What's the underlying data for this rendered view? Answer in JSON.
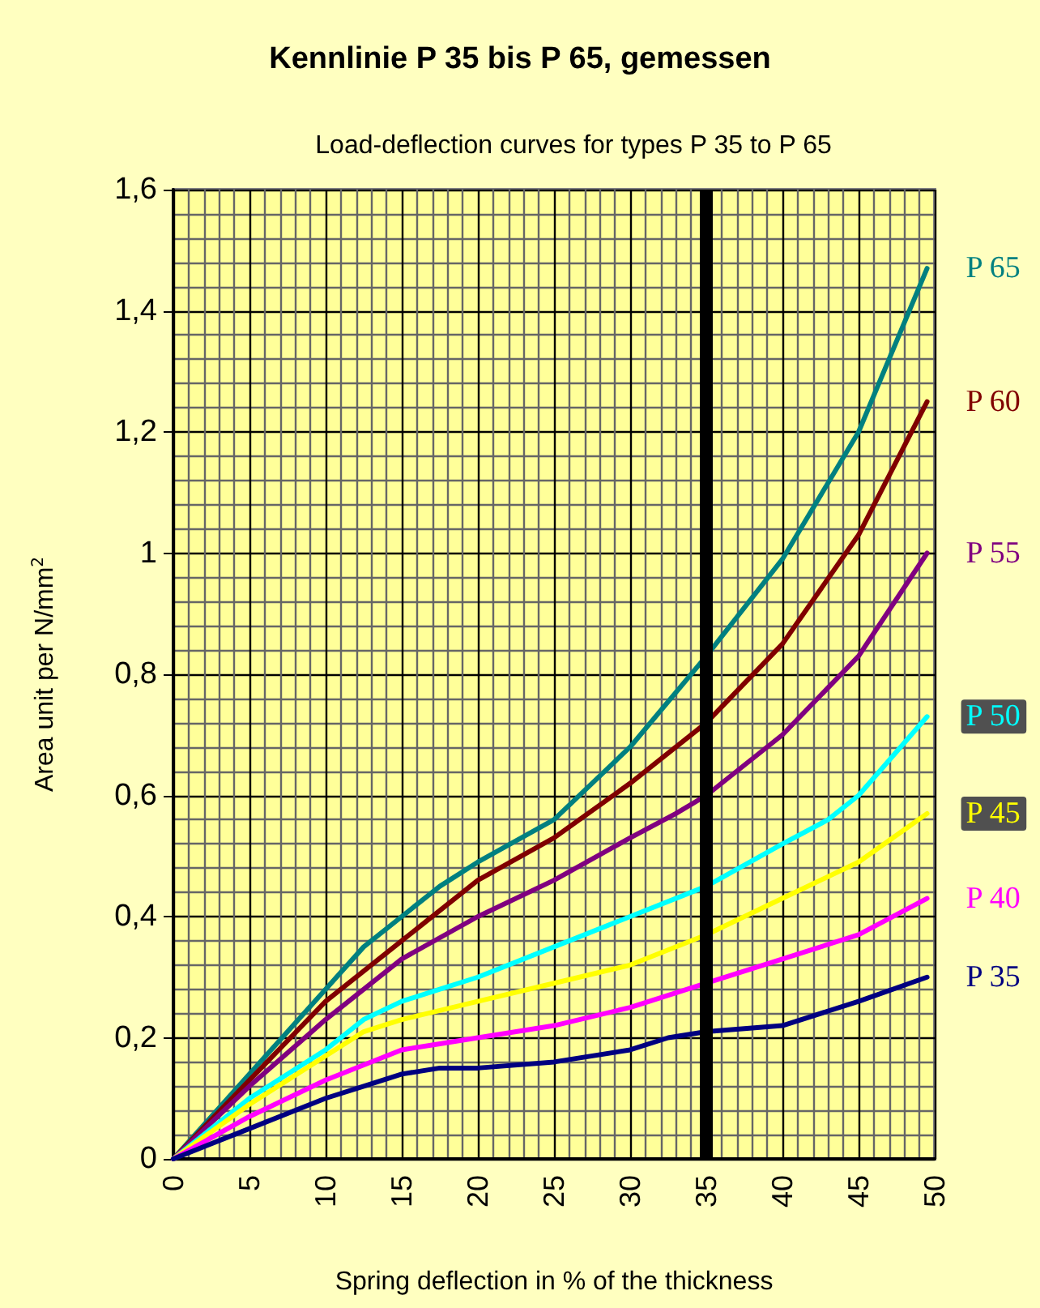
{
  "chart_data": {
    "type": "line",
    "title": "Kennlinie P 35 bis P 65, gemessen",
    "subtitle": "Load-deflection curves for types P 35 to P 65",
    "xlabel": "Spring deflection in % of the thickness",
    "ylabel": "Area unit per N/mm$^{2}$",
    "xlim": [
      0,
      50
    ],
    "xticks": [
      0,
      5,
      10,
      15,
      20,
      25,
      30,
      35,
      40,
      45,
      50
    ],
    "ylim": [
      0,
      1.6
    ],
    "yticks": [
      0,
      {
        "value": 0.2,
        "label": "0,2"
      },
      {
        "value": 0.4,
        "label": "0,4"
      },
      {
        "value": 0.6,
        "label": "0,6"
      },
      {
        "value": 0.8,
        "label": "0,8"
      },
      1,
      {
        "value": 1.2,
        "label": "1,2"
      },
      {
        "value": 1.4,
        "label": "1,4"
      },
      {
        "value": 1.6,
        "label": "1,6"
      }
    ],
    "grid": true,
    "legend": false,
    "marker": "none",
    "line_style": "solid",
    "ref_lines": [
      {
        "axis": "x",
        "value": 35,
        "color": "#000000"
      }
    ],
    "series": [
      {
        "name": "P 65",
        "color": "#008080",
        "x": [
          0,
          5,
          10,
          12.5,
          15,
          17.5,
          20,
          25,
          30,
          35,
          40,
          45,
          49.5
        ],
        "values": [
          0,
          0.14,
          0.28,
          0.35,
          0.4,
          0.45,
          0.49,
          0.56,
          0.68,
          0.83,
          0.99,
          1.2,
          1.47
        ]
      },
      {
        "name": "P 60",
        "color": "#800000",
        "x": [
          0,
          5,
          10,
          15,
          20,
          25,
          30,
          35,
          40,
          45,
          49.5
        ],
        "values": [
          0,
          0.13,
          0.26,
          0.36,
          0.46,
          0.53,
          0.62,
          0.72,
          0.85,
          1.03,
          1.25
        ]
      },
      {
        "name": "P 55",
        "color": "#800080",
        "x": [
          0,
          5,
          10,
          15,
          20,
          25,
          30,
          33,
          35,
          40,
          45,
          49.5
        ],
        "values": [
          0,
          0.12,
          0.23,
          0.33,
          0.4,
          0.46,
          0.53,
          0.57,
          0.6,
          0.7,
          0.83,
          1.0
        ]
      },
      {
        "name": "P 50",
        "color": "#00ffff",
        "x": [
          0,
          5,
          10,
          12.5,
          15,
          17.5,
          20,
          25,
          30,
          35,
          40,
          43,
          45,
          49.5
        ],
        "values": [
          0,
          0.1,
          0.18,
          0.23,
          0.26,
          0.28,
          0.3,
          0.35,
          0.4,
          0.45,
          0.52,
          0.56,
          0.6,
          0.73
        ]
      },
      {
        "name": "P 45",
        "color": "#ffff00",
        "x": [
          0,
          5,
          10,
          12.5,
          15,
          20,
          25,
          30,
          35,
          40,
          45,
          49.5
        ],
        "values": [
          0,
          0.09,
          0.17,
          0.21,
          0.23,
          0.26,
          0.29,
          0.32,
          0.37,
          0.43,
          0.49,
          0.57
        ]
      },
      {
        "name": "P 40",
        "color": "#ff00ff",
        "x": [
          0,
          5,
          10,
          15,
          17.5,
          20,
          25,
          30,
          35,
          40,
          45,
          49.5
        ],
        "values": [
          0,
          0.07,
          0.13,
          0.18,
          0.19,
          0.2,
          0.22,
          0.25,
          0.29,
          0.33,
          0.37,
          0.43
        ]
      },
      {
        "name": "P 35",
        "color": "#000080",
        "x": [
          0,
          5,
          10,
          12.5,
          15,
          17.5,
          20,
          25,
          30,
          32.5,
          35,
          40,
          45,
          49.5
        ],
        "values": [
          0,
          0.05,
          0.1,
          0.12,
          0.14,
          0.15,
          0.15,
          0.16,
          0.18,
          0.2,
          0.21,
          0.22,
          0.26,
          0.3
        ]
      }
    ]
  }
}
